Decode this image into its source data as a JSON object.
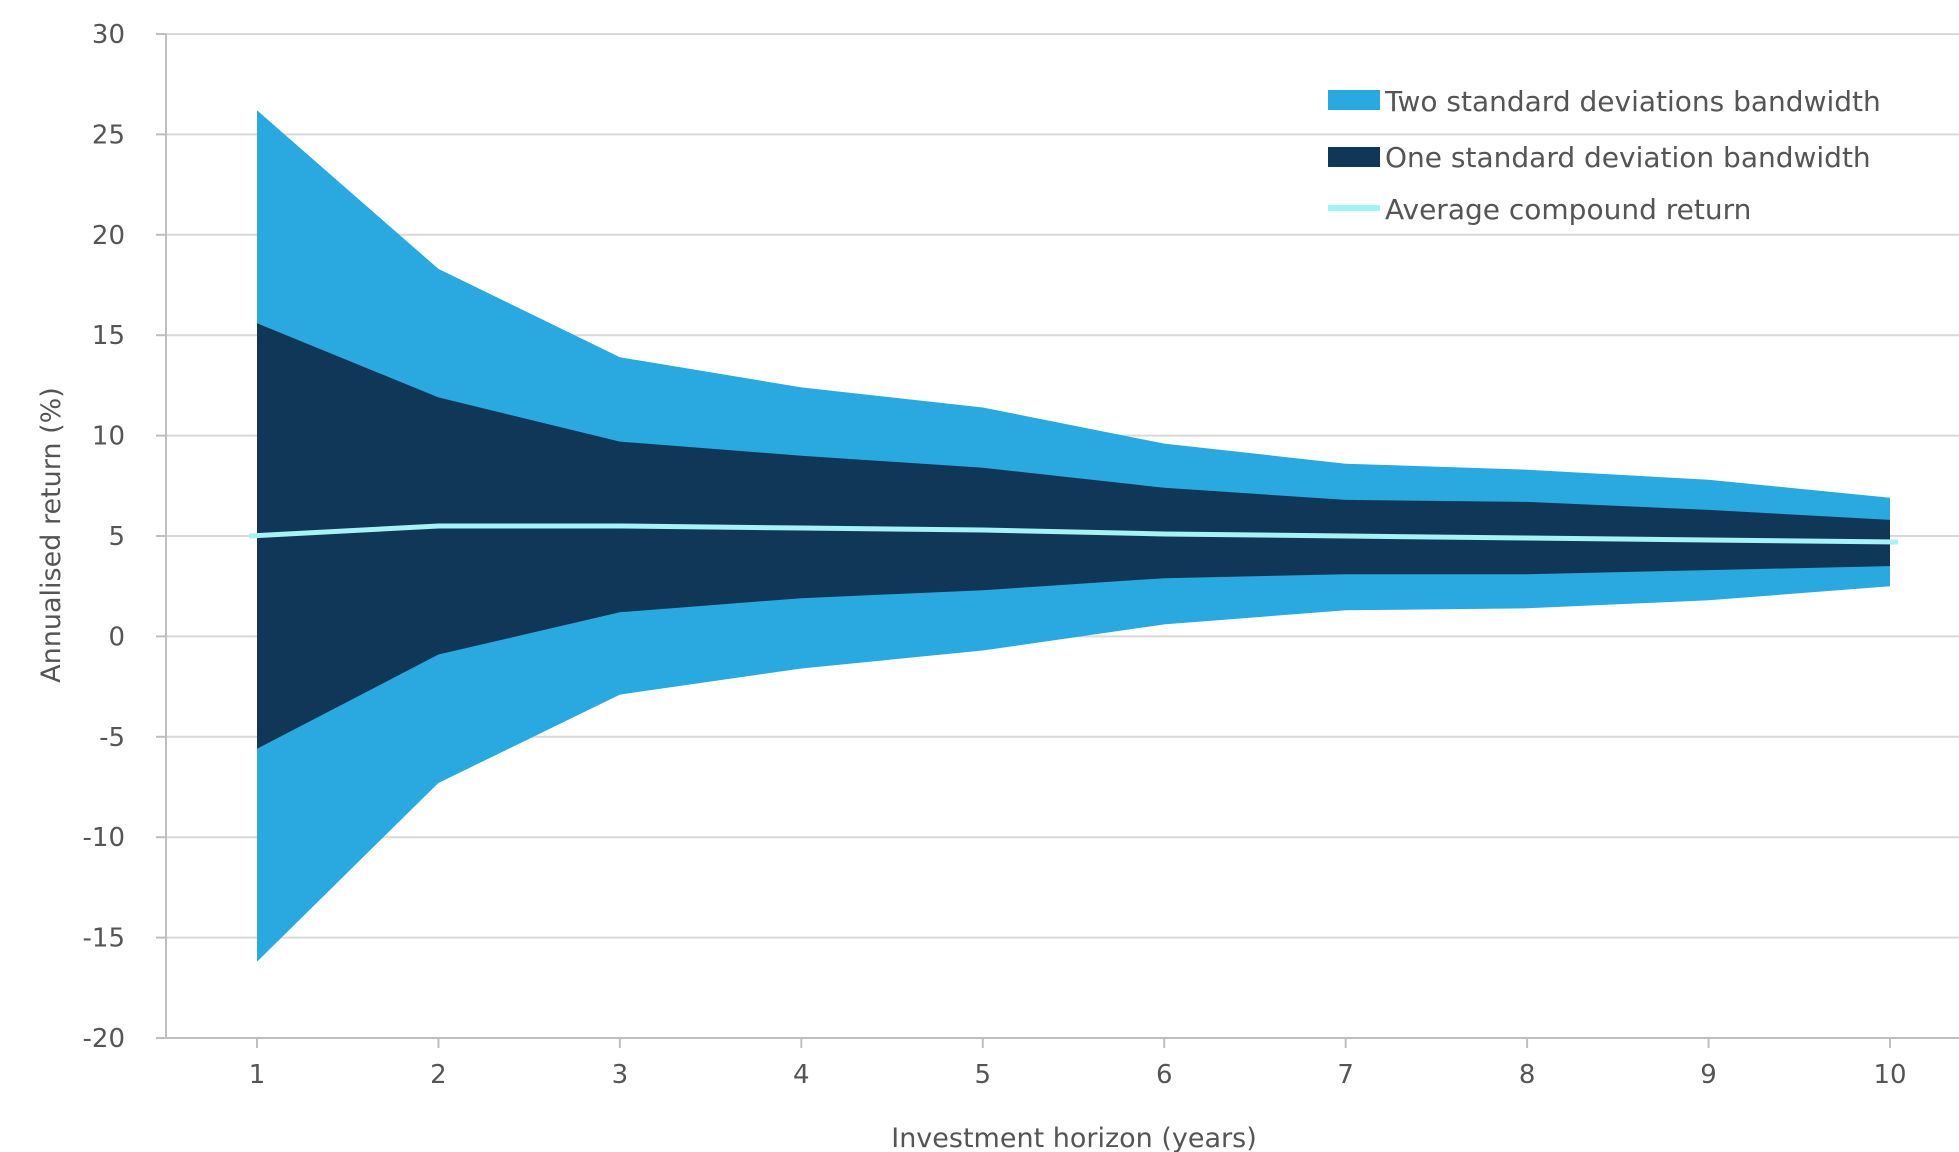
{
  "chart_data": {
    "type": "area",
    "title": "",
    "xlabel": "Investment horizon (years)",
    "ylabel": "Annualised return (%)",
    "x": [
      1,
      2,
      3,
      4,
      5,
      6,
      7,
      8,
      9,
      10
    ],
    "x_tick_labels": [
      "1",
      "2",
      "3",
      "4",
      "5",
      "6",
      "7",
      "8",
      "9",
      "10"
    ],
    "y_tick_labels": [
      "30",
      "25",
      "20",
      "15",
      "10",
      "5",
      "0",
      "-5",
      "-10",
      "-15",
      "-20"
    ],
    "ylim": [
      -20,
      30
    ],
    "y_ticks": [
      30,
      25,
      20,
      15,
      10,
      5,
      0,
      -5,
      -10,
      -15,
      -20
    ],
    "grid": "horizontal",
    "legend_position": "top-right",
    "series": [
      {
        "name": "Two standard deviations bandwidth",
        "color": "#29a9e0",
        "upper": [
          26.2,
          18.3,
          13.9,
          12.4,
          11.4,
          9.6,
          8.6,
          8.3,
          7.8,
          6.9
        ],
        "lower": [
          -16.2,
          -7.3,
          -2.9,
          -1.6,
          -0.7,
          0.6,
          1.3,
          1.4,
          1.8,
          2.5
        ]
      },
      {
        "name": "One standard deviation bandwidth",
        "color": "#113758",
        "upper": [
          15.6,
          11.9,
          9.7,
          9.0,
          8.4,
          7.4,
          6.8,
          6.7,
          6.3,
          5.8
        ],
        "lower": [
          -5.6,
          -0.9,
          1.2,
          1.9,
          2.3,
          2.9,
          3.1,
          3.1,
          3.3,
          3.5
        ]
      },
      {
        "name": "Average compound return",
        "color": "#a6f3f5",
        "values": [
          5.0,
          5.5,
          5.5,
          5.4,
          5.3,
          5.1,
          5.0,
          4.9,
          4.8,
          4.7
        ]
      }
    ]
  }
}
